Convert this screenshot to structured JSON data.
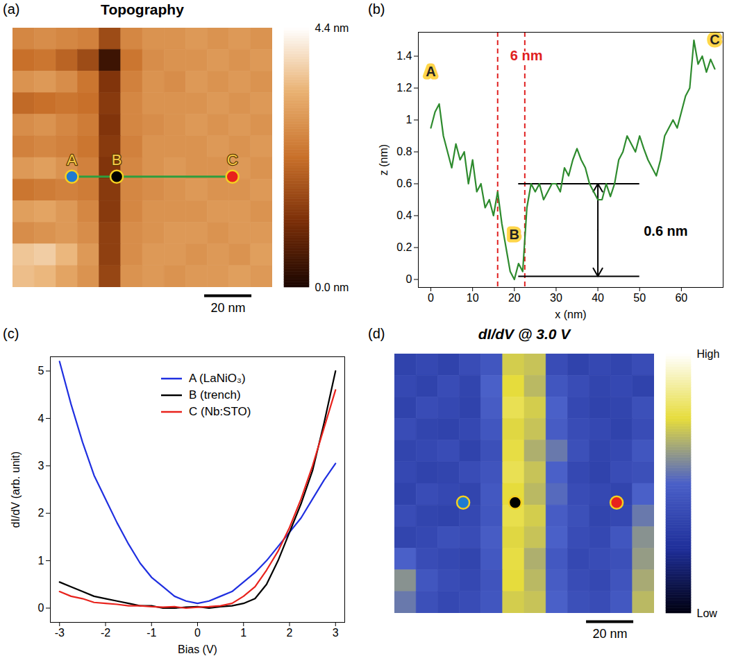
{
  "chart_data": [
    {
      "type": "heatmap",
      "panel_label": "(a)",
      "title": "Topography",
      "xlim": [
        0,
        110
      ],
      "ylim": [
        0,
        110
      ],
      "tick_labels": false,
      "cells": [
        [
          2.6,
          2.7,
          2.6,
          2.5,
          1.6,
          2.6,
          2.8,
          2.8,
          2.9,
          2.8,
          2.9,
          2.8
        ],
        [
          2.2,
          2.3,
          2.0,
          1.6,
          0.4,
          2.3,
          2.7,
          2.8,
          2.8,
          2.9,
          2.8,
          2.9
        ],
        [
          2.8,
          2.9,
          2.7,
          2.3,
          1.2,
          2.5,
          2.8,
          2.7,
          2.9,
          2.8,
          2.9,
          2.8
        ],
        [
          2.1,
          2.2,
          2.3,
          2.2,
          1.3,
          2.6,
          2.8,
          2.8,
          2.8,
          2.9,
          2.8,
          2.9
        ],
        [
          2.7,
          2.8,
          2.6,
          2.4,
          1.2,
          2.6,
          2.7,
          2.8,
          2.9,
          2.8,
          2.9,
          2.8
        ],
        [
          2.5,
          2.6,
          2.5,
          2.3,
          1.3,
          2.5,
          2.8,
          2.8,
          2.8,
          2.9,
          2.8,
          2.9
        ],
        [
          2.9,
          3.0,
          2.8,
          2.5,
          1.2,
          2.6,
          2.8,
          2.9,
          2.8,
          2.8,
          2.9,
          2.8
        ],
        [
          2.3,
          2.4,
          2.5,
          2.4,
          1.3,
          2.6,
          2.7,
          2.8,
          2.9,
          2.8,
          2.8,
          2.9
        ],
        [
          3.0,
          3.1,
          2.9,
          2.6,
          1.3,
          2.6,
          2.8,
          2.8,
          2.8,
          2.9,
          2.9,
          2.8
        ],
        [
          2.7,
          2.8,
          2.9,
          2.7,
          1.4,
          2.7,
          2.8,
          2.9,
          2.9,
          2.8,
          2.9,
          2.9
        ],
        [
          3.6,
          3.7,
          3.4,
          2.9,
          1.4,
          2.7,
          2.9,
          2.9,
          2.8,
          2.9,
          2.8,
          3.0
        ],
        [
          3.5,
          3.4,
          3.1,
          2.8,
          1.5,
          2.8,
          2.9,
          2.8,
          2.9,
          2.9,
          3.0,
          2.9
        ]
      ],
      "colorbar": {
        "range": [
          0,
          4.4
        ],
        "ticks": [
          {
            "value": 4.4,
            "label": "4.4 nm"
          },
          {
            "value": 0,
            "label": "0.0 nm"
          }
        ],
        "colors": [
          "#1a0500",
          "#7a2e08",
          "#c8702a",
          "#e9b070",
          "#ffffff"
        ]
      },
      "markers": [
        {
          "label": "A",
          "x": 25,
          "y": 63,
          "color": "#1f7ad0"
        },
        {
          "label": "B",
          "x": 44,
          "y": 63,
          "color": "#000000"
        },
        {
          "label": "C",
          "x": 93,
          "y": 63,
          "color": "#e8221c"
        }
      ],
      "profile_line": {
        "from": "A",
        "to": "C",
        "color": "#2e9e3e"
      },
      "scale_bar": {
        "length": 20,
        "label": "20 nm"
      }
    },
    {
      "type": "line",
      "panel_label": "(b)",
      "xlabel": "x (nm)",
      "ylabel": "z (nm)",
      "xlim": [
        -3,
        70
      ],
      "ylim": [
        -0.05,
        1.55
      ],
      "xticks": [
        0,
        10,
        20,
        30,
        40,
        50,
        60
      ],
      "yticks": [
        0,
        0.2,
        0.4,
        0.6,
        0.8,
        1,
        1.2,
        1.4
      ],
      "grid": false,
      "x": [
        0,
        1,
        2,
        3,
        4,
        5,
        6,
        7,
        8,
        9,
        10,
        11,
        12,
        13,
        14,
        15,
        16,
        17,
        18,
        19,
        20,
        21,
        22,
        23,
        24,
        25,
        26,
        27,
        28,
        29,
        30,
        31,
        32,
        33,
        34,
        35,
        36,
        37,
        38,
        39,
        40,
        41,
        42,
        43,
        44,
        45,
        46,
        47,
        48,
        49,
        50,
        51,
        52,
        53,
        54,
        55,
        56,
        57,
        58,
        59,
        60,
        61,
        62,
        63,
        64,
        65,
        66,
        67,
        68
      ],
      "values": [
        0.95,
        1.05,
        1.1,
        0.9,
        0.8,
        0.7,
        0.85,
        0.75,
        0.8,
        0.6,
        0.75,
        0.55,
        0.6,
        0.45,
        0.5,
        0.4,
        0.55,
        0.35,
        0.2,
        0.05,
        0.0,
        0.1,
        0.05,
        0.45,
        0.6,
        0.55,
        0.6,
        0.5,
        0.55,
        0.6,
        0.6,
        0.55,
        0.7,
        0.65,
        0.75,
        0.82,
        0.75,
        0.7,
        0.6,
        0.55,
        0.5,
        0.5,
        0.6,
        0.52,
        0.6,
        0.75,
        0.8,
        0.9,
        0.85,
        0.8,
        0.9,
        0.82,
        0.75,
        0.7,
        0.65,
        0.75,
        0.9,
        0.95,
        1.0,
        0.95,
        1.05,
        1.15,
        1.2,
        1.5,
        1.35,
        1.4,
        1.3,
        1.38,
        1.32
      ],
      "color": "#2e8b2e",
      "point_labels": [
        {
          "text": "A",
          "x": 0,
          "y": 1.3
        },
        {
          "text": "B",
          "x": 20,
          "y": 0.28
        },
        {
          "text": "C",
          "x": 68,
          "y": 1.5
        }
      ],
      "annotations": [
        {
          "text": "6 nm",
          "x": 19,
          "y": 1.4,
          "color": "#e02020"
        },
        {
          "text": "0.6 nm",
          "x": 51,
          "y": 0.3,
          "color": "#000000"
        }
      ],
      "reference_lines": {
        "vertical": {
          "x": [
            16,
            22.5
          ],
          "color": "#e02020",
          "line_style": "dashed"
        },
        "horizontal": {
          "y": [
            0.6,
            0.02
          ],
          "x_range": [
            21,
            50
          ],
          "color": "#000000"
        }
      },
      "arrow": {
        "x": 40,
        "y_range": [
          0.02,
          0.6
        ],
        "color": "#000000"
      }
    },
    {
      "type": "line",
      "panel_label": "(c)",
      "xlabel": "Bias (V)",
      "ylabel": "dI/dV (arb. unit)",
      "xlim": [
        -3.2,
        3.2
      ],
      "ylim": [
        -0.3,
        5.3
      ],
      "xticks": [
        -3,
        -2,
        -1,
        0,
        1,
        2,
        3
      ],
      "yticks": [
        0,
        1,
        2,
        3,
        4,
        5
      ],
      "grid": false,
      "legend": "top",
      "x": [
        -3,
        -2.75,
        -2.5,
        -2.25,
        -2,
        -1.75,
        -1.5,
        -1.25,
        -1,
        -0.75,
        -0.5,
        -0.25,
        0,
        0.25,
        0.5,
        0.75,
        1,
        1.25,
        1.5,
        1.75,
        2,
        2.25,
        2.5,
        2.75,
        3
      ],
      "series": [
        {
          "name": "A (LaNiO₃)",
          "color": "#1f2fe0",
          "values": [
            5.2,
            4.3,
            3.5,
            2.8,
            2.3,
            1.8,
            1.35,
            0.95,
            0.65,
            0.45,
            0.25,
            0.15,
            0.1,
            0.15,
            0.25,
            0.35,
            0.55,
            0.75,
            1.0,
            1.3,
            1.6,
            1.9,
            2.3,
            2.7,
            3.05
          ]
        },
        {
          "name": "B (trench)",
          "color": "#000000",
          "values": [
            0.55,
            0.45,
            0.35,
            0.25,
            0.2,
            0.15,
            0.1,
            0.05,
            0.05,
            0.0,
            0.0,
            0.02,
            0.03,
            0.0,
            0.03,
            0.05,
            0.1,
            0.2,
            0.5,
            1.0,
            1.6,
            2.2,
            2.9,
            3.9,
            5.0
          ]
        },
        {
          "name": "C (Nb:STO)",
          "color": "#e8221c",
          "values": [
            0.35,
            0.25,
            0.2,
            0.12,
            0.1,
            0.08,
            0.05,
            0.05,
            0.03,
            0.02,
            0.03,
            0.0,
            0.02,
            0.03,
            0.05,
            0.1,
            0.25,
            0.45,
            0.8,
            1.2,
            1.7,
            2.3,
            3.0,
            3.8,
            4.6
          ]
        }
      ]
    },
    {
      "type": "heatmap",
      "panel_label": "(d)",
      "title": "dI/dV @ 3.0 V",
      "xlim": [
        0,
        110
      ],
      "ylim": [
        0,
        110
      ],
      "tick_labels": false,
      "cells": [
        [
          0.35,
          0.38,
          0.35,
          0.4,
          0.45,
          0.72,
          0.7,
          0.4,
          0.35,
          0.38,
          0.36,
          0.4
        ],
        [
          0.38,
          0.35,
          0.4,
          0.36,
          0.5,
          0.75,
          0.68,
          0.45,
          0.4,
          0.36,
          0.38,
          0.35
        ],
        [
          0.35,
          0.4,
          0.38,
          0.35,
          0.48,
          0.78,
          0.72,
          0.5,
          0.38,
          0.35,
          0.36,
          0.42
        ],
        [
          0.4,
          0.36,
          0.35,
          0.38,
          0.45,
          0.74,
          0.7,
          0.48,
          0.4,
          0.38,
          0.35,
          0.4
        ],
        [
          0.36,
          0.38,
          0.4,
          0.35,
          0.42,
          0.76,
          0.66,
          0.55,
          0.42,
          0.36,
          0.38,
          0.45
        ],
        [
          0.38,
          0.35,
          0.36,
          0.4,
          0.44,
          0.78,
          0.7,
          0.5,
          0.38,
          0.35,
          0.4,
          0.42
        ],
        [
          0.35,
          0.4,
          0.38,
          0.36,
          0.46,
          0.75,
          0.68,
          0.52,
          0.4,
          0.38,
          0.36,
          0.5
        ],
        [
          0.4,
          0.36,
          0.35,
          0.38,
          0.45,
          0.77,
          0.72,
          0.48,
          0.42,
          0.36,
          0.38,
          0.55
        ],
        [
          0.36,
          0.38,
          0.42,
          0.4,
          0.48,
          0.74,
          0.7,
          0.5,
          0.4,
          0.38,
          0.45,
          0.6
        ],
        [
          0.5,
          0.4,
          0.38,
          0.36,
          0.46,
          0.76,
          0.66,
          0.46,
          0.38,
          0.4,
          0.42,
          0.62
        ],
        [
          0.6,
          0.45,
          0.4,
          0.38,
          0.44,
          0.75,
          0.68,
          0.48,
          0.4,
          0.38,
          0.44,
          0.65
        ],
        [
          0.55,
          0.42,
          0.38,
          0.4,
          0.45,
          0.72,
          0.7,
          0.5,
          0.42,
          0.4,
          0.46,
          0.68
        ]
      ],
      "colorbar": {
        "range": [
          0,
          1
        ],
        "ticks": [
          {
            "value": 1,
            "label": "High"
          },
          {
            "value": 0,
            "label": "Low"
          }
        ],
        "colors": [
          "#000010",
          "#1f2f9a",
          "#4a60c8",
          "#e6dc3c",
          "#ffffff"
        ]
      },
      "markers": [
        {
          "x": 29,
          "y": 63,
          "color": "#1f7ad0"
        },
        {
          "x": 51,
          "y": 63,
          "color": "#000000"
        },
        {
          "x": 94,
          "y": 63,
          "color": "#e8221c"
        }
      ],
      "scale_bar": {
        "length": 20,
        "label": "20 nm"
      }
    }
  ]
}
